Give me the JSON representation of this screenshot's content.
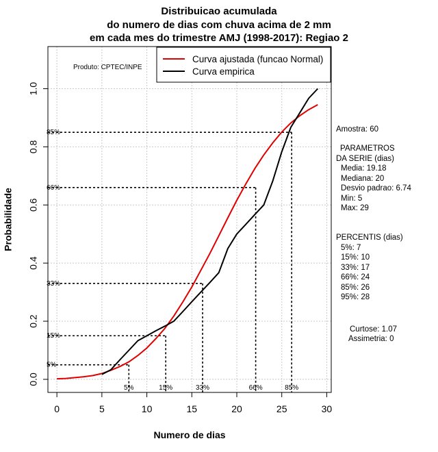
{
  "title_lines": [
    "Distribuicao acumulada",
    "do numero de dias com chuva acima de 2 mm",
    "em cada mes do trimestre AMJ (1998-2017): Regiao 2"
  ],
  "product_label": "Produto: CPTEC/INPE",
  "sidebar": {
    "sample": "Amostra: 60",
    "params_title_1": "PARAMETROS",
    "params_title_2": "DA SERIE (dias)",
    "params": [
      "Media: 19.18",
      "Mediana: 20",
      "Desvio padrao: 6.74",
      "Min: 5",
      "Max: 29"
    ],
    "percentis_title": "PERCENTIS (dias)",
    "percentis": [
      "5%: 7",
      "15%: 10",
      "33%: 17",
      "66%: 24",
      "85%: 26",
      "95%: 28"
    ],
    "kurtosis": "Curtose: 1.07",
    "skewness": "Assimetria: 0"
  },
  "chart_data": {
    "type": "line",
    "title": "Distribuicao acumulada do numero de dias com chuva acima de 2 mm em cada mes do trimestre AMJ (1998-2017): Regiao 2",
    "xlabel": "Numero de dias",
    "ylabel": "Probabilidade",
    "xlim": [
      -1,
      30.5
    ],
    "ylim": [
      -0.045,
      1.145
    ],
    "xticks": [
      0,
      5,
      10,
      15,
      20,
      25,
      30
    ],
    "yticks": [
      0.0,
      0.2,
      0.4,
      0.6,
      0.8,
      1.0
    ],
    "ytick_labels": [
      "0.0",
      "0.2",
      "0.4",
      "0.6",
      "0.8",
      "1.0"
    ],
    "grid": true,
    "legend_position": "top-right",
    "series": [
      {
        "name": "Curva ajustada (funcao Normal)",
        "color": "#e00000",
        "x": [
          0,
          1,
          2,
          3,
          4,
          5,
          6,
          7,
          8,
          9,
          10,
          11,
          12,
          13,
          14,
          15,
          16,
          17,
          18,
          19,
          20,
          21,
          22,
          23,
          24,
          25,
          26,
          27,
          28,
          29
        ],
        "y": [
          0.002,
          0.003,
          0.006,
          0.009,
          0.013,
          0.02,
          0.031,
          0.044,
          0.06,
          0.082,
          0.108,
          0.14,
          0.175,
          0.218,
          0.266,
          0.318,
          0.375,
          0.433,
          0.494,
          0.556,
          0.616,
          0.672,
          0.725,
          0.772,
          0.814,
          0.851,
          0.882,
          0.907,
          0.928,
          0.945
        ]
      },
      {
        "name": "Curva empirica",
        "color": "#000000",
        "x": [
          5,
          6,
          7,
          8,
          9,
          10,
          11,
          12,
          13,
          14,
          15,
          16,
          17,
          18,
          19,
          20,
          21,
          22,
          23,
          24,
          25,
          26,
          27,
          28,
          29
        ],
        "y": [
          0.017,
          0.033,
          0.067,
          0.1,
          0.133,
          0.15,
          0.167,
          0.183,
          0.2,
          0.233,
          0.267,
          0.3,
          0.333,
          0.367,
          0.45,
          0.5,
          0.533,
          0.567,
          0.6,
          0.683,
          0.783,
          0.867,
          0.917,
          0.967,
          1.0
        ]
      }
    ],
    "percentile_markers": [
      {
        "label": "5%",
        "x": 8.0,
        "y": 0.05
      },
      {
        "label": "15%",
        "x": 12.1,
        "y": 0.15
      },
      {
        "label": "33%",
        "x": 16.2,
        "y": 0.33
      },
      {
        "label": "66%",
        "x": 22.1,
        "y": 0.66
      },
      {
        "label": "85%",
        "x": 26.1,
        "y": 0.85
      }
    ]
  }
}
